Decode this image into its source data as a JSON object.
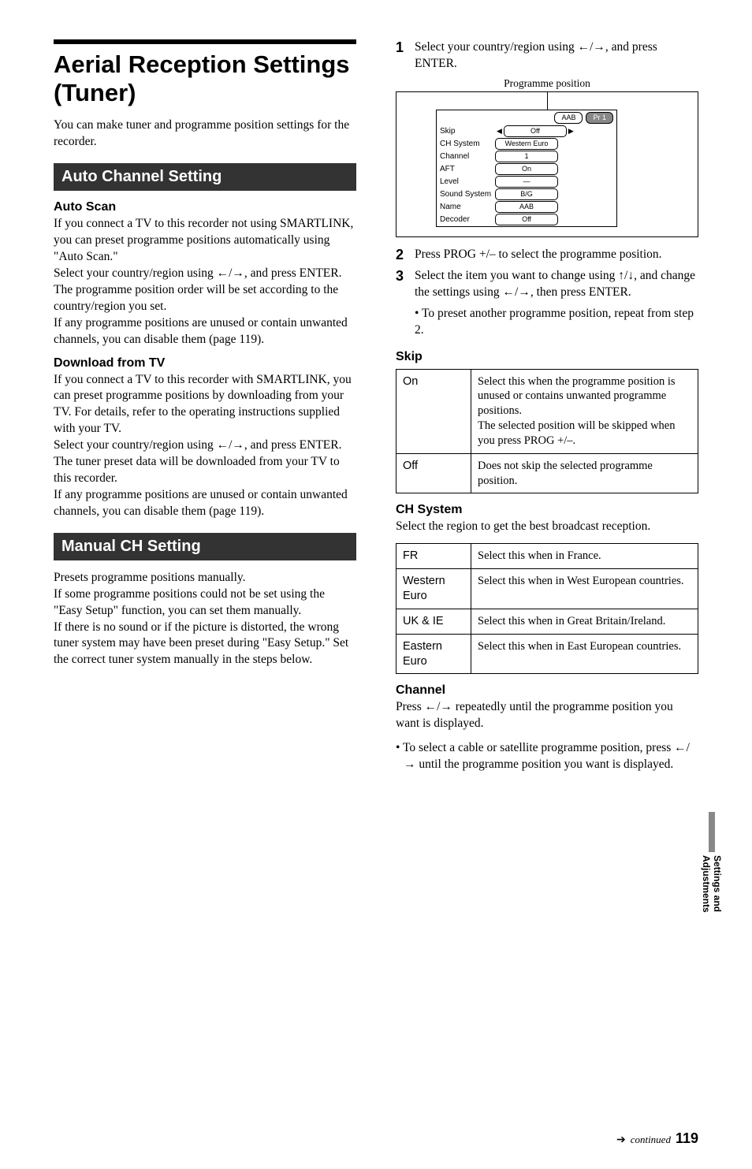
{
  "header": {
    "title": "Aerial Reception Settings (Tuner)",
    "intro": "You can make tuner and programme position settings for the recorder."
  },
  "autoChannel": {
    "bar": "Auto Channel Setting",
    "autoScan": {
      "heading": "Auto Scan",
      "para": "If you connect a TV to this recorder not using SMARTLINK, you can preset programme positions automatically using \"Auto Scan.\"\nSelect your country/region using ←/→, and press ENTER.\nThe programme position order will be set according to the country/region you set.\nIf any programme positions are unused or contain unwanted channels, you can disable them (page 119)."
    },
    "download": {
      "heading": "Download from TV",
      "para": "If you connect a TV to this recorder with SMARTLINK, you can preset programme positions by downloading from your TV. For details, refer to the operating instructions supplied with your TV.\nSelect your country/region using ←/→, and press ENTER.\nThe tuner preset data will be downloaded from your TV to this recorder.\nIf any programme positions are unused or contain unwanted channels, you can disable them (page 119)."
    }
  },
  "manualCH": {
    "bar": "Manual CH Setting",
    "para": "Presets programme positions manually.\nIf some programme positions could not be set using the \"Easy Setup\" function, you can set them manually.\nIf there is no sound or if the picture is distorted, the wrong tuner system may have been preset during \"Easy Setup.\" Set the correct tuner system manually in the steps below."
  },
  "steps": {
    "s1": "Select your country/region using ←/→, and press ENTER.",
    "s2": "Press PROG +/– to select the programme position.",
    "s3": "Select the item you want to change using ↑/↓, and change the settings using ←/→, then press ENTER.",
    "s3sub": "• To preset another programme position, repeat from step 2."
  },
  "diagram": {
    "label": "Programme position",
    "topRight1": "AAB",
    "topRight2": "Pr 1",
    "rows": [
      {
        "lab": "Skip",
        "val": "Off",
        "arrows": true
      },
      {
        "lab": "CH System",
        "val": "Western Euro"
      },
      {
        "lab": "Channel",
        "val": "1"
      },
      {
        "lab": "AFT",
        "val": "On"
      },
      {
        "lab": "Level",
        "val": "—"
      },
      {
        "lab": "Sound System",
        "val": "B/G"
      },
      {
        "lab": "Name",
        "val": "AAB"
      },
      {
        "lab": "Decoder",
        "val": "Off"
      }
    ]
  },
  "skip": {
    "heading": "Skip",
    "rows": [
      {
        "k": "On",
        "v": "Select this when the programme position is unused or contains unwanted programme positions.\nThe selected position will be skipped when you press PROG +/–."
      },
      {
        "k": "Off",
        "v": "Does not skip the selected programme position."
      }
    ]
  },
  "chsystem": {
    "heading": "CH System",
    "intro": "Select the region to get the best broadcast reception.",
    "rows": [
      {
        "k": "FR",
        "v": "Select this when in France."
      },
      {
        "k": "Western Euro",
        "v": "Select this when in West European countries."
      },
      {
        "k": "UK & IE",
        "v": "Select this when in Great Britain/Ireland."
      },
      {
        "k": "Eastern Euro",
        "v": "Select this when in East European countries."
      }
    ]
  },
  "channel": {
    "heading": "Channel",
    "para": "Press ←/→ repeatedly until the programme position you want is displayed.",
    "bullet": "• To select a cable or satellite programme position, press ←/→ until the programme position you want is displayed."
  },
  "sideTab": "Settings and Adjustments",
  "footer": {
    "cont": "continued",
    "page": "119"
  }
}
